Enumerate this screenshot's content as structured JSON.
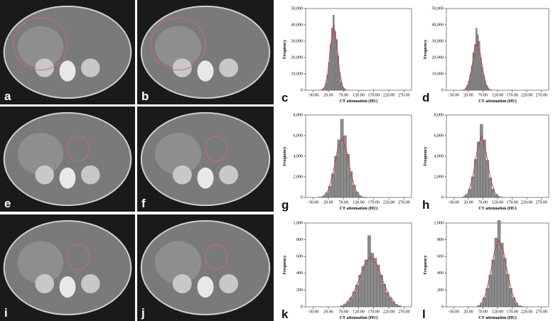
{
  "images": [
    {
      "label": "a"
    },
    {
      "label": "b"
    },
    {
      "label": "e"
    },
    {
      "label": "f"
    },
    {
      "label": "i"
    },
    {
      "label": "j"
    }
  ],
  "chart_data": [
    {
      "type": "histogram",
      "panel_label": "c",
      "y_label": "Frequency",
      "x_label": "CT attenuation (HU)",
      "color": "#8c8c8c",
      "curve_color": "#c0392b",
      "bins": [
        -10,
        -5,
        0,
        5,
        10,
        15,
        20,
        25,
        30,
        35,
        40,
        45,
        50,
        55,
        60,
        65,
        70,
        75,
        80,
        85
      ],
      "values": [
        30,
        140,
        500,
        1600,
        4200,
        9300,
        17000,
        28000,
        38000,
        46000,
        36000,
        31000,
        21000,
        11000,
        5000,
        2000,
        700,
        200,
        60
      ],
      "curve_x": [
        -2,
        8,
        18,
        28,
        38,
        48,
        58,
        68,
        78
      ],
      "curve_y": [
        156,
        1760,
        9960,
        28280,
        40000,
        28280,
        9960,
        1760,
        156
      ],
      "xlim": [
        -55,
        295
      ],
      "xticks": [
        {
          "value": -30,
          "label": "-30.00"
        },
        {
          "value": 20,
          "label": "20.00"
        },
        {
          "value": 70,
          "label": "70.00"
        },
        {
          "value": 120,
          "label": "120.00"
        },
        {
          "value": 170,
          "label": "170.00"
        },
        {
          "value": 220,
          "label": "220.00"
        },
        {
          "value": 270,
          "label": "270.00"
        }
      ],
      "ylim": [
        0,
        50000
      ],
      "yticks": [
        0,
        {
          "value": 10000,
          "label": "10,000"
        },
        {
          "value": 20000,
          "label": "20,000"
        },
        {
          "value": 30000,
          "label": "30,000"
        },
        {
          "value": 40000,
          "label": "40,000"
        },
        {
          "value": 50000,
          "label": "50,000"
        }
      ]
    },
    {
      "type": "histogram",
      "panel_label": "d",
      "y_label": "Frequency",
      "x_label": "CT attenuation (HU)",
      "color": "#8c8c8c",
      "curve_color": "#c0392b",
      "bins": [
        0,
        5,
        10,
        15,
        20,
        25,
        30,
        35,
        40,
        45,
        50,
        55,
        60,
        65,
        70,
        75,
        80,
        85,
        90,
        95,
        100,
        105
      ],
      "values": [
        200,
        550,
        1300,
        2900,
        5600,
        9800,
        15000,
        23000,
        28000,
        38000,
        34000,
        30000,
        20000,
        14000,
        9500,
        5500,
        2800,
        1300,
        550,
        200,
        60
      ],
      "curve_x": [
        10,
        20,
        30,
        40,
        50,
        60,
        70,
        80,
        90
      ],
      "curve_y": [
        830,
        3900,
        11900,
        23200,
        29000,
        23200,
        11900,
        3900,
        830
      ],
      "xlim": [
        -55,
        295
      ],
      "xticks": [
        {
          "value": -30,
          "label": "-30.00"
        },
        {
          "value": 20,
          "label": "20.00"
        },
        {
          "value": 70,
          "label": "70.00"
        },
        {
          "value": 120,
          "label": "120.00"
        },
        {
          "value": 170,
          "label": "170.00"
        },
        {
          "value": 220,
          "label": "220.00"
        },
        {
          "value": 270,
          "label": "270.00"
        }
      ],
      "ylim": [
        0,
        50000
      ],
      "yticks": [
        0,
        {
          "value": 10000,
          "label": "10,000"
        },
        {
          "value": 20000,
          "label": "20,000"
        },
        {
          "value": 30000,
          "label": "30,000"
        },
        {
          "value": 40000,
          "label": "40,000"
        },
        {
          "value": 50000,
          "label": "50,000"
        }
      ]
    },
    {
      "type": "histogram",
      "panel_label": "g",
      "y_label": "Frequency",
      "x_label": "CT attenuation (HU)",
      "color": "#8c8c8c",
      "curve_color": "#c0392b",
      "bins": [
        -10,
        0,
        10,
        20,
        30,
        40,
        50,
        60,
        70,
        80,
        90,
        100,
        110,
        120,
        130,
        140,
        150
      ],
      "values": [
        40,
        150,
        450,
        1100,
        2300,
        4000,
        5600,
        7600,
        6000,
        4200,
        2500,
        1200,
        500,
        160,
        50,
        15
      ],
      "curve_x": [
        5,
        20,
        35,
        50,
        65,
        80,
        95,
        110,
        125
      ],
      "curve_y": [
        140,
        710,
        2290,
        4580,
        5800,
        4580,
        2290,
        710,
        140
      ],
      "xlim": [
        -55,
        295
      ],
      "xticks": [
        {
          "value": -30,
          "label": "-30.00"
        },
        {
          "value": 20,
          "label": "20.00"
        },
        {
          "value": 70,
          "label": "70.00"
        },
        {
          "value": 120,
          "label": "120.00"
        },
        {
          "value": 170,
          "label": "170.00"
        },
        {
          "value": 220,
          "label": "220.00"
        },
        {
          "value": 270,
          "label": "270.00"
        }
      ],
      "ylim": [
        0,
        8000
      ],
      "yticks": [
        0,
        {
          "value": 2000,
          "label": "2,000"
        },
        {
          "value": 4000,
          "label": "4,000"
        },
        {
          "value": 6000,
          "label": "6,000"
        },
        {
          "value": 8000,
          "label": "8,000"
        }
      ]
    },
    {
      "type": "histogram",
      "panel_label": "h",
      "y_label": "Frequency",
      "x_label": "CT attenuation (HU)",
      "color": "#8c8c8c",
      "curve_color": "#c0392b",
      "bins": [
        0,
        10,
        20,
        30,
        40,
        50,
        60,
        70,
        80,
        90,
        100,
        110,
        120,
        130,
        140
      ],
      "values": [
        70,
        270,
        800,
        2000,
        3700,
        5400,
        7100,
        5600,
        3600,
        1900,
        800,
        280,
        80,
        20
      ],
      "curve_x": [
        5,
        20,
        35,
        50,
        65,
        80,
        95,
        110,
        125
      ],
      "curve_y": [
        66,
        480,
        1950,
        4530,
        6000,
        4530,
        1950,
        480,
        66
      ],
      "xlim": [
        -55,
        295
      ],
      "xticks": [
        {
          "value": -30,
          "label": "-30.00"
        },
        {
          "value": 20,
          "label": "20.00"
        },
        {
          "value": 70,
          "label": "70.00"
        },
        {
          "value": 120,
          "label": "120.00"
        },
        {
          "value": 170,
          "label": "170.00"
        },
        {
          "value": 220,
          "label": "220.00"
        },
        {
          "value": 270,
          "label": "270.00"
        }
      ],
      "ylim": [
        0,
        8000
      ],
      "yticks": [
        0,
        {
          "value": 2000,
          "label": "2,000"
        },
        {
          "value": 4000,
          "label": "4,000"
        },
        {
          "value": 6000,
          "label": "6,000"
        },
        {
          "value": 8000,
          "label": "8,000"
        }
      ]
    },
    {
      "type": "histogram",
      "panel_label": "k",
      "y_label": "Frequency",
      "x_label": "CT attenuation (HU)",
      "color": "#8c8c8c",
      "curve_color": "#c0392b",
      "bins": [
        60,
        70,
        80,
        90,
        100,
        110,
        120,
        130,
        140,
        150,
        160,
        170,
        180,
        190,
        200,
        210,
        220,
        230,
        240,
        250,
        260
      ],
      "values": [
        15,
        35,
        60,
        110,
        180,
        260,
        380,
        480,
        560,
        850,
        640,
        580,
        500,
        380,
        270,
        170,
        110,
        60,
        30,
        15
      ],
      "curve_x": [
        80,
        100,
        120,
        140,
        160,
        180,
        200,
        220,
        240
      ],
      "curve_y": [
        44,
        138,
        312,
        510,
        600,
        510,
        312,
        138,
        44
      ],
      "xlim": [
        -55,
        295
      ],
      "xticks": [
        {
          "value": -30,
          "label": "-30.00"
        },
        {
          "value": 20,
          "label": "20.00"
        },
        {
          "value": 70,
          "label": "70.00"
        },
        {
          "value": 120,
          "label": "120.00"
        },
        {
          "value": 170,
          "label": "170.00"
        },
        {
          "value": 220,
          "label": "220.00"
        },
        {
          "value": 270,
          "label": "270.00"
        }
      ],
      "ylim": [
        0,
        1000
      ],
      "yticks": [
        0,
        200,
        400,
        600,
        800,
        {
          "value": 1000,
          "label": "1,000"
        }
      ]
    },
    {
      "type": "histogram",
      "panel_label": "l",
      "y_label": "Frequency",
      "x_label": "CT attenuation (HU)",
      "color": "#8c8c8c",
      "curve_color": "#c0392b",
      "bins": [
        50,
        60,
        70,
        80,
        90,
        100,
        110,
        120,
        130,
        140,
        150,
        160,
        170,
        180,
        190,
        200,
        210
      ],
      "values": [
        15,
        45,
        110,
        220,
        380,
        560,
        820,
        1030,
        760,
        580,
        390,
        220,
        110,
        45,
        15,
        5
      ],
      "curve_x": [
        65,
        80,
        95,
        110,
        125,
        140,
        155,
        170,
        185
      ],
      "curve_y": [
        45,
        158,
        390,
        668,
        800,
        668,
        390,
        158,
        45
      ],
      "xlim": [
        -55,
        295
      ],
      "xticks": [
        {
          "value": -30,
          "label": "-30.00"
        },
        {
          "value": 20,
          "label": "20.00"
        },
        {
          "value": 70,
          "label": "70.00"
        },
        {
          "value": 120,
          "label": "120.00"
        },
        {
          "value": 170,
          "label": "170.00"
        },
        {
          "value": 220,
          "label": "220.00"
        },
        {
          "value": 270,
          "label": "270.00"
        }
      ],
      "ylim": [
        0,
        1000
      ],
      "yticks": [
        0,
        200,
        400,
        600,
        800,
        {
          "value": 1000,
          "label": "1,000"
        }
      ]
    }
  ]
}
